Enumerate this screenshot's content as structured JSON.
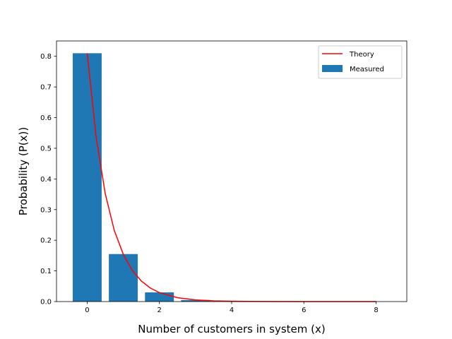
{
  "chart_data": {
    "type": "bar",
    "title": "",
    "xlabel": "Number of customers in system (x)",
    "ylabel": "Probability (P(x))",
    "xlim": [
      -0.85,
      8.85
    ],
    "ylim": [
      0,
      0.85
    ],
    "xticks": [
      0,
      2,
      4,
      6,
      8
    ],
    "xtick_labels": [
      "0",
      "2",
      "4",
      "6",
      "8"
    ],
    "yticks": [
      0.0,
      0.1,
      0.2,
      0.3,
      0.4,
      0.5,
      0.6,
      0.7,
      0.8
    ],
    "ytick_labels": [
      "0.0",
      "0.1",
      "0.2",
      "0.3",
      "0.4",
      "0.5",
      "0.6",
      "0.7",
      "0.8"
    ],
    "grid": false,
    "legend_position": "top-right",
    "series": [
      {
        "name": "Measured",
        "kind": "bar",
        "color": "#1f77b4",
        "x": [
          0,
          1,
          2,
          3,
          4,
          5,
          6,
          7,
          8
        ],
        "values": [
          0.81,
          0.155,
          0.03,
          0.005,
          0.0,
          0.0,
          0.0,
          0.0,
          0.0
        ]
      },
      {
        "name": "Theory",
        "kind": "line",
        "color": "#ff0000",
        "x": [
          0,
          0.25,
          0.5,
          0.75,
          1,
          1.25,
          1.5,
          1.75,
          2,
          2.5,
          3,
          3.5,
          4,
          4.5,
          5,
          6,
          7,
          8
        ],
        "values": [
          0.81,
          0.534,
          0.352,
          0.232,
          0.1539,
          0.1013,
          0.0668,
          0.044,
          0.0292,
          0.0127,
          0.0055,
          0.0024,
          0.0011,
          0.0005,
          0.0002,
          4e-05,
          1e-05,
          0.0
        ]
      }
    ]
  }
}
